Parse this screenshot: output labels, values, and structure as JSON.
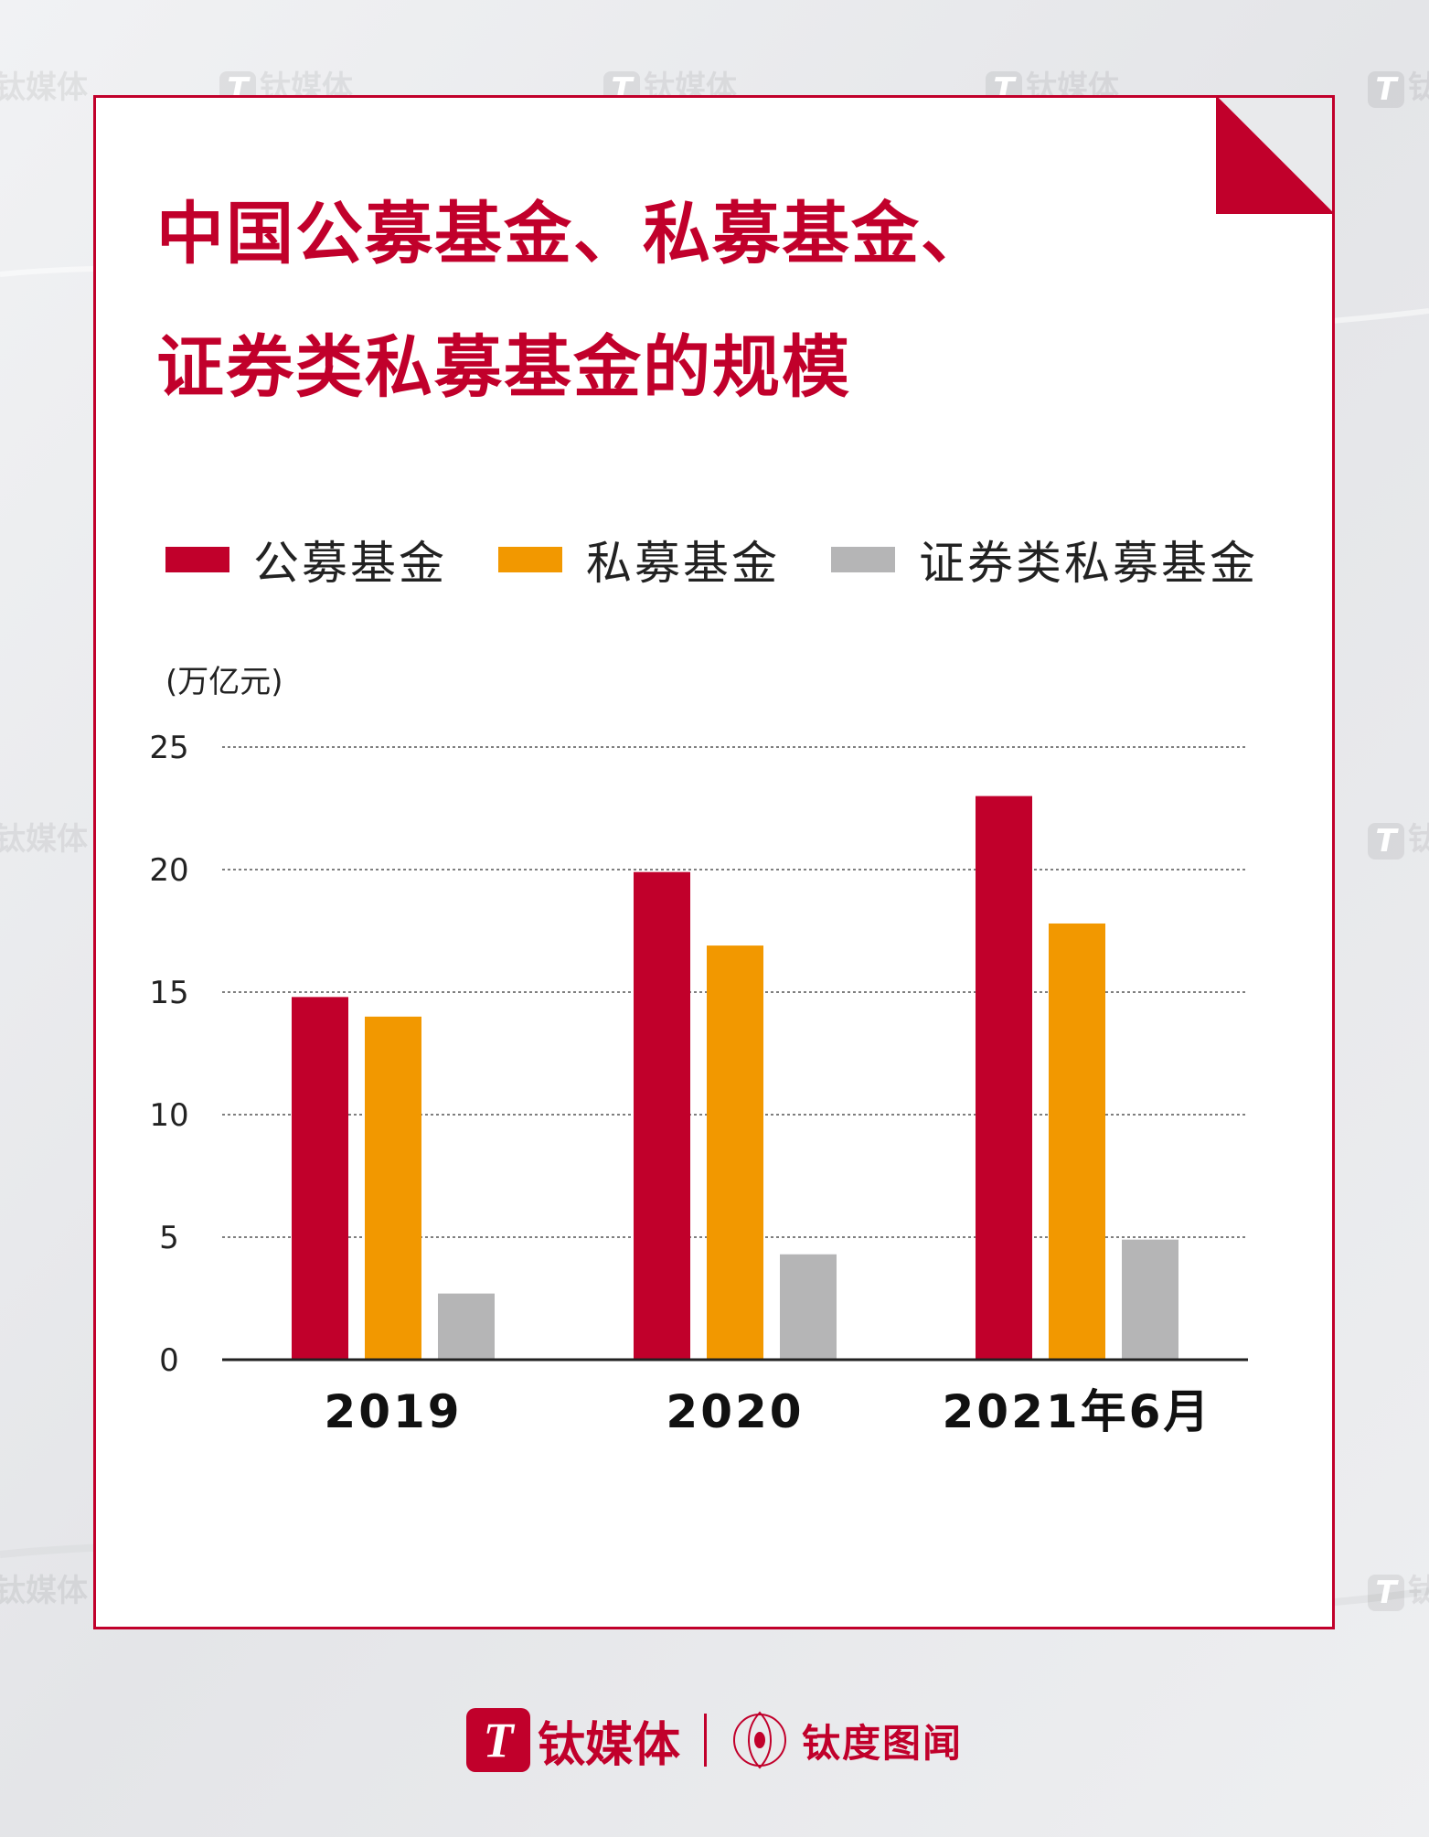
{
  "colors": {
    "accent": "#c1002b",
    "series": [
      "#c1002b",
      "#f29800",
      "#b5b5b6"
    ]
  },
  "title_lines": [
    "中国公募基金、私募基金、",
    "证券类私募基金的规模"
  ],
  "watermark_text": "钛媒体",
  "footer": {
    "brand_logo_glyph": "T",
    "brand_name": "钛媒体",
    "sub_brand_name": "钛度图闻"
  },
  "chart_data": {
    "type": "bar",
    "title": "中国公募基金、私募基金、证券类私募基金的规模",
    "unit_label": "(万亿元)",
    "categories": [
      "2019",
      "2020",
      "2021年6月"
    ],
    "series": [
      {
        "name": "公募基金",
        "values": [
          14.8,
          19.9,
          23.0
        ]
      },
      {
        "name": "私募基金",
        "values": [
          14.0,
          16.9,
          17.8
        ]
      },
      {
        "name": "证券类私募基金",
        "values": [
          2.7,
          4.3,
          4.9
        ]
      }
    ],
    "ylim": [
      0,
      25
    ],
    "yticks": [
      0,
      5,
      10,
      15,
      20,
      25
    ],
    "grid": "dashed horizontal",
    "legend_position": "top-left"
  }
}
